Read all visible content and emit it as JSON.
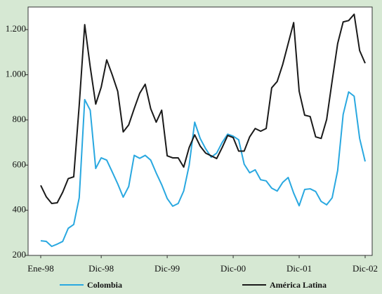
{
  "chart_data": {
    "type": "line",
    "categories": [
      "Ene-98",
      null,
      null,
      null,
      null,
      null,
      null,
      null,
      null,
      null,
      null,
      "Dic-98",
      null,
      null,
      null,
      null,
      null,
      null,
      null,
      null,
      null,
      null,
      null,
      "Dic-99",
      null,
      null,
      null,
      null,
      null,
      null,
      null,
      null,
      null,
      null,
      null,
      "Dic-00",
      null,
      null,
      null,
      null,
      null,
      null,
      null,
      null,
      null,
      null,
      null,
      "Dic-01",
      null,
      null,
      null,
      null,
      null,
      null,
      null,
      null,
      null,
      null,
      null,
      "Dic-02"
    ],
    "series": [
      {
        "name": "Colombia",
        "color": "#29a8e0",
        "values": [
          265,
          262,
          240,
          250,
          262,
          320,
          337,
          455,
          890,
          843,
          585,
          632,
          622,
          570,
          517,
          458,
          505,
          643,
          630,
          643,
          622,
          565,
          513,
          452,
          418,
          430,
          485,
          600,
          790,
          718,
          672,
          635,
          653,
          700,
          737,
          728,
          712,
          604,
          566,
          579,
          535,
          530,
          498,
          485,
          523,
          545,
          476,
          420,
          492,
          495,
          483,
          439,
          424,
          455,
          576,
          824,
          924,
          905,
          718,
          616
        ]
      },
      {
        "name": "América Latina",
        "color": "#1a1a1a",
        "values": [
          510,
          460,
          430,
          433,
          480,
          540,
          548,
          865,
          1222,
          1035,
          870,
          945,
          1066,
          1000,
          927,
          747,
          778,
          850,
          918,
          958,
          850,
          790,
          843,
          641,
          632,
          632,
          591,
          678,
          734,
          684,
          653,
          641,
          629,
          678,
          731,
          722,
          662,
          662,
          725,
          762,
          750,
          762,
          942,
          970,
          1045,
          1138,
          1231,
          927,
          821,
          815,
          725,
          718,
          802,
          973,
          1138,
          1234,
          1240,
          1268,
          1107,
          1051
        ]
      }
    ],
    "ylim": [
      200,
      1300
    ],
    "yticks": [
      200,
      400,
      600,
      800,
      {
        "value": 1000,
        "label": "1.000"
      },
      {
        "value": 1200,
        "label": "1.200"
      }
    ],
    "grid": false
  }
}
